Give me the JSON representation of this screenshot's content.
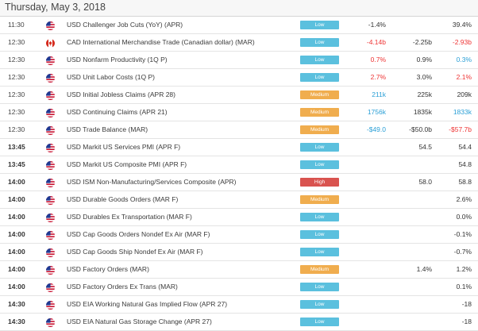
{
  "header": {
    "title": "Thursday, May 3, 2018"
  },
  "colors": {
    "low": "#5bc0de",
    "medium": "#f0ad4e",
    "high": "#d9534f",
    "negative": "#ee3333",
    "positive": "#2a9fd6"
  },
  "rows": [
    {
      "time": "11:30",
      "bold": false,
      "flag": "us",
      "event": "USD Challenger Job Cuts (YoY) (APR)",
      "impact": "Low",
      "actual": "-1.4%",
      "actual_color": "dark",
      "forecast": "",
      "forecast_color": "dark",
      "previous": "39.4%",
      "previous_color": "dark"
    },
    {
      "time": "12:30",
      "bold": false,
      "flag": "ca",
      "event": "CAD International Merchandise Trade (Canadian dollar) (MAR)",
      "impact": "Low",
      "actual": "-4.14b",
      "actual_color": "red",
      "forecast": "-2.25b",
      "forecast_color": "dark",
      "previous": "-2.93b",
      "previous_color": "red"
    },
    {
      "time": "12:30",
      "bold": false,
      "flag": "us",
      "event": "USD Nonfarm Productivity (1Q P)",
      "impact": "Low",
      "actual": "0.7%",
      "actual_color": "red",
      "forecast": "0.9%",
      "forecast_color": "dark",
      "previous": "0.3%",
      "previous_color": "blue"
    },
    {
      "time": "12:30",
      "bold": false,
      "flag": "us",
      "event": "USD Unit Labor Costs (1Q P)",
      "impact": "Low",
      "actual": "2.7%",
      "actual_color": "red",
      "forecast": "3.0%",
      "forecast_color": "dark",
      "previous": "2.1%",
      "previous_color": "red"
    },
    {
      "time": "12:30",
      "bold": false,
      "flag": "us",
      "event": "USD Initial Jobless Claims (APR 28)",
      "impact": "Medium",
      "actual": "211k",
      "actual_color": "blue",
      "forecast": "225k",
      "forecast_color": "dark",
      "previous": "209k",
      "previous_color": "dark"
    },
    {
      "time": "12:30",
      "bold": false,
      "flag": "us",
      "event": "USD Continuing Claims (APR 21)",
      "impact": "Medium",
      "actual": "1756k",
      "actual_color": "blue",
      "forecast": "1835k",
      "forecast_color": "dark",
      "previous": "1833k",
      "previous_color": "blue"
    },
    {
      "time": "12:30",
      "bold": false,
      "flag": "us",
      "event": "USD Trade Balance (MAR)",
      "impact": "Medium",
      "actual": "-$49.0",
      "actual_color": "blue",
      "forecast": "-$50.0b",
      "forecast_color": "dark",
      "previous": "-$57.7b",
      "previous_color": "red"
    },
    {
      "time": "13:45",
      "bold": true,
      "flag": "us",
      "event": "USD Markit US Services PMI (APR F)",
      "impact": "Low",
      "actual": "",
      "actual_color": "dark",
      "forecast": "54.5",
      "forecast_color": "dark",
      "previous": "54.4",
      "previous_color": "dark"
    },
    {
      "time": "13:45",
      "bold": true,
      "flag": "us",
      "event": "USD Markit US Composite PMI (APR F)",
      "impact": "Low",
      "actual": "",
      "actual_color": "dark",
      "forecast": "",
      "forecast_color": "dark",
      "previous": "54.8",
      "previous_color": "dark"
    },
    {
      "time": "14:00",
      "bold": true,
      "flag": "us",
      "event": "USD ISM Non-Manufacturing/Services Composite (APR)",
      "impact": "High",
      "actual": "",
      "actual_color": "dark",
      "forecast": "58.0",
      "forecast_color": "dark",
      "previous": "58.8",
      "previous_color": "dark"
    },
    {
      "time": "14:00",
      "bold": true,
      "flag": "us",
      "event": "USD Durable Goods Orders (MAR F)",
      "impact": "Medium",
      "actual": "",
      "actual_color": "dark",
      "forecast": "",
      "forecast_color": "dark",
      "previous": "2.6%",
      "previous_color": "dark"
    },
    {
      "time": "14:00",
      "bold": true,
      "flag": "us",
      "event": "USD Durables Ex Transportation (MAR F)",
      "impact": "Low",
      "actual": "",
      "actual_color": "dark",
      "forecast": "",
      "forecast_color": "dark",
      "previous": "0.0%",
      "previous_color": "dark"
    },
    {
      "time": "14:00",
      "bold": true,
      "flag": "us",
      "event": "USD Cap Goods Orders Nondef Ex Air (MAR F)",
      "impact": "Low",
      "actual": "",
      "actual_color": "dark",
      "forecast": "",
      "forecast_color": "dark",
      "previous": "-0.1%",
      "previous_color": "dark"
    },
    {
      "time": "14:00",
      "bold": true,
      "flag": "us",
      "event": "USD Cap Goods Ship Nondef Ex Air (MAR F)",
      "impact": "Low",
      "actual": "",
      "actual_color": "dark",
      "forecast": "",
      "forecast_color": "dark",
      "previous": "-0.7%",
      "previous_color": "dark"
    },
    {
      "time": "14:00",
      "bold": true,
      "flag": "us",
      "event": "USD Factory Orders (MAR)",
      "impact": "Medium",
      "actual": "",
      "actual_color": "dark",
      "forecast": "1.4%",
      "forecast_color": "dark",
      "previous": "1.2%",
      "previous_color": "dark"
    },
    {
      "time": "14:00",
      "bold": true,
      "flag": "us",
      "event": "USD Factory Orders Ex Trans (MAR)",
      "impact": "Low",
      "actual": "",
      "actual_color": "dark",
      "forecast": "",
      "forecast_color": "dark",
      "previous": "0.1%",
      "previous_color": "dark"
    },
    {
      "time": "14:30",
      "bold": true,
      "flag": "us",
      "event": "USD EIA Working Natural Gas Implied Flow (APR 27)",
      "impact": "Low",
      "actual": "",
      "actual_color": "dark",
      "forecast": "",
      "forecast_color": "dark",
      "previous": "-18",
      "previous_color": "dark"
    },
    {
      "time": "14:30",
      "bold": true,
      "flag": "us",
      "event": "USD EIA Natural Gas Storage Change (APR 27)",
      "impact": "Low",
      "actual": "",
      "actual_color": "dark",
      "forecast": "",
      "forecast_color": "dark",
      "previous": "-18",
      "previous_color": "dark"
    }
  ]
}
